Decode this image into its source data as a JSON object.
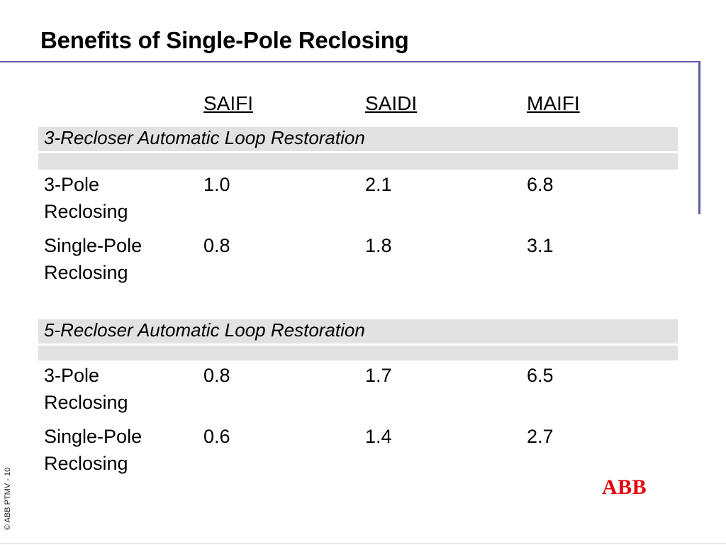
{
  "slide": {
    "title": "Benefits of Single-Pole Reclosing",
    "footer": "© ABB PTMV  - 10",
    "logo": "ABB",
    "accent_color": "#5a5ea8",
    "logo_color": "#e3000f"
  },
  "table": {
    "columns": [
      "SAIFI",
      "SAIDI",
      "MAIFI"
    ],
    "groups": [
      {
        "label": "3-Recloser Automatic Loop Restoration",
        "rows": [
          {
            "name_line1": "3-Pole",
            "name_line2": "Reclosing",
            "values": [
              "1.0",
              "2.1",
              "6.8"
            ]
          },
          {
            "name_line1": "Single-Pole",
            "name_line2": "Reclosing",
            "values": [
              "0.8",
              "1.8",
              "3.1"
            ]
          }
        ]
      },
      {
        "label": "5-Recloser Automatic Loop Restoration",
        "rows": [
          {
            "name_line1": "3-Pole",
            "name_line2": "Reclosing",
            "values": [
              "0.8",
              "1.7",
              "6.5"
            ]
          },
          {
            "name_line1": "Single-Pole",
            "name_line2": "Reclosing",
            "values": [
              "0.6",
              "1.4",
              "2.7"
            ]
          }
        ]
      }
    ]
  }
}
